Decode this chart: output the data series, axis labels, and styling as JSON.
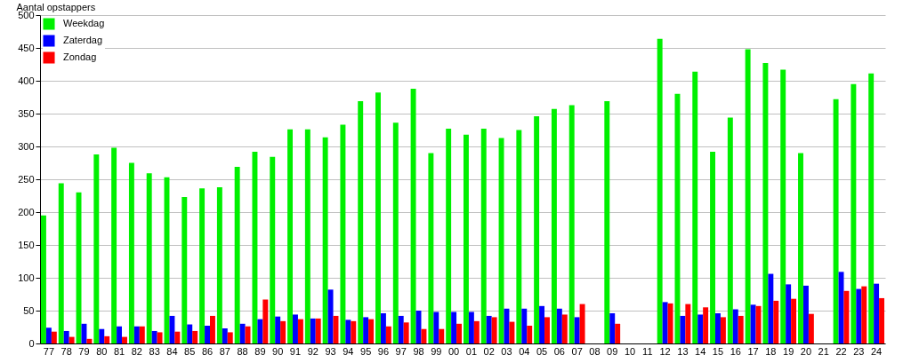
{
  "chart_data": {
    "type": "bar",
    "ylabel": "Aantal opstappers",
    "categories": [
      "77",
      "78",
      "79",
      "80",
      "81",
      "82",
      "83",
      "84",
      "85",
      "86",
      "87",
      "88",
      "89",
      "90",
      "91",
      "92",
      "93",
      "94",
      "95",
      "96",
      "97",
      "98",
      "99",
      "00",
      "01",
      "02",
      "03",
      "04",
      "05",
      "06",
      "07",
      "08",
      "09",
      "10",
      "11",
      "12",
      "13",
      "14",
      "15",
      "16",
      "17",
      "18",
      "19",
      "20",
      "21",
      "22",
      "23",
      "24"
    ],
    "series": [
      {
        "name": "Weekdag",
        "color": "#00f000",
        "values": [
          195,
          244,
          230,
          288,
          298,
          275,
          259,
          253,
          223,
          236,
          238,
          269,
          292,
          284,
          326,
          326,
          314,
          333,
          369,
          382,
          336,
          388,
          290,
          327,
          318,
          327,
          313,
          325,
          346,
          357,
          363,
          null,
          369,
          null,
          null,
          464,
          380,
          414,
          292,
          344,
          448,
          427,
          417,
          290,
          null,
          372,
          395,
          411
        ]
      },
      {
        "name": "Zaterdag",
        "color": "#0000ff",
        "values": [
          24,
          19,
          30,
          22,
          26,
          26,
          19,
          42,
          29,
          27,
          23,
          30,
          37,
          41,
          44,
          38,
          82,
          36,
          40,
          46,
          42,
          50,
          48,
          48,
          48,
          42,
          53,
          53,
          57,
          53,
          40,
          null,
          46,
          null,
          null,
          63,
          42,
          44,
          46,
          52,
          59,
          106,
          90,
          88,
          null,
          109,
          83,
          91
        ]
      },
      {
        "name": "Zondag",
        "color": "#ff0000",
        "values": [
          18,
          10,
          7,
          11,
          10,
          26,
          17,
          18,
          19,
          42,
          17,
          26,
          67,
          34,
          37,
          38,
          42,
          34,
          37,
          26,
          32,
          22,
          22,
          30,
          34,
          40,
          33,
          27,
          40,
          44,
          60,
          null,
          30,
          null,
          null,
          61,
          60,
          55,
          40,
          42,
          57,
          65,
          68,
          45,
          null,
          80,
          87,
          69
        ]
      }
    ],
    "ylim": [
      0,
      500
    ],
    "yticks": [
      0,
      50,
      100,
      150,
      200,
      250,
      300,
      350,
      400,
      450,
      500
    ],
    "grid": "y",
    "legend": "top left"
  }
}
